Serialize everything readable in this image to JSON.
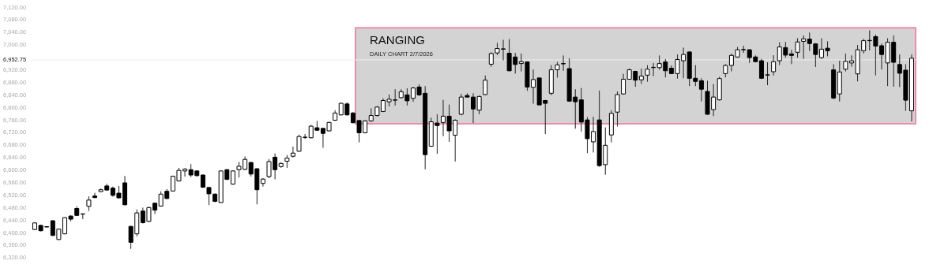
{
  "chart_data": {
    "type": "candlestick",
    "categories": [
      null,
      null,
      null,
      null,
      null,
      null,
      null,
      null,
      null,
      null,
      null,
      null,
      null,
      null,
      null,
      null,
      null,
      null,
      null,
      null,
      null,
      null,
      null,
      null,
      null,
      null,
      null,
      null,
      null,
      null,
      null,
      null,
      null,
      null,
      null,
      null,
      null,
      null,
      null,
      null,
      null,
      null,
      null,
      null,
      null,
      null,
      null,
      null,
      null,
      null,
      null,
      null,
      null,
      null,
      null,
      null,
      null,
      null,
      null,
      null,
      null,
      null,
      null,
      null,
      null,
      null,
      null,
      null,
      null,
      null,
      null,
      null,
      null,
      null,
      null,
      null,
      null,
      null,
      null,
      null,
      null,
      null,
      null,
      null,
      null,
      null,
      null,
      null,
      null,
      null,
      null,
      null,
      null,
      null,
      null,
      null,
      null,
      null,
      null,
      null,
      null,
      null,
      null,
      null,
      null,
      null,
      null,
      null,
      null,
      null,
      null,
      null,
      null,
      null,
      null,
      null,
      null,
      null,
      null,
      null,
      null,
      null,
      null,
      null,
      null,
      null,
      null,
      null,
      null,
      null,
      null,
      null,
      null,
      null,
      null,
      null,
      null,
      null,
      null,
      null,
      null,
      null,
      null,
      null,
      null,
      null,
      null
    ],
    "ohlc": [
      [
        6411,
        6434,
        6409,
        6432
      ],
      [
        6424,
        6426,
        6405,
        6407
      ],
      [
        6420,
        6421,
        6418,
        6419
      ],
      [
        6439,
        6440,
        6390,
        6392
      ],
      [
        6379,
        6414,
        6377,
        6412
      ],
      [
        6397,
        6450,
        6396,
        6449
      ],
      [
        6454,
        6456,
        6437,
        6444
      ],
      [
        6478,
        6485,
        6454,
        6456
      ],
      [
        6461,
        6462,
        6444,
        6460
      ],
      [
        6485,
        6517,
        6470,
        6505
      ],
      [
        6518,
        6528,
        6511,
        6513
      ],
      [
        6532,
        6542,
        6530,
        6538
      ],
      [
        6550,
        6557,
        6535,
        6537
      ],
      [
        6543,
        6548,
        6516,
        6520
      ],
      [
        6527,
        6550,
        6510,
        6512
      ],
      [
        6560,
        6582,
        6488,
        6490
      ],
      [
        6421,
        6422,
        6349,
        6370
      ],
      [
        6397,
        6475,
        6389,
        6464
      ],
      [
        6470,
        6481,
        6430,
        6433
      ],
      [
        6437,
        6484,
        6435,
        6481
      ],
      [
        6495,
        6497,
        6461,
        6473
      ],
      [
        6486,
        6533,
        6484,
        6524
      ],
      [
        6533,
        6540,
        6508,
        6510
      ],
      [
        6534,
        6583,
        6532,
        6581
      ],
      [
        6566,
        6608,
        6564,
        6600
      ],
      [
        6598,
        6607,
        6580,
        6604
      ],
      [
        6602,
        6620,
        6578,
        6585
      ],
      [
        6598,
        6600,
        6580,
        6583
      ],
      [
        6585,
        6587,
        6544,
        6546
      ],
      [
        6545,
        6547,
        6489,
        6525
      ],
      [
        6524,
        6526,
        6498,
        6501
      ],
      [
        6497,
        6600,
        6496,
        6598
      ],
      [
        6602,
        6604,
        6569,
        6571
      ],
      [
        6556,
        6600,
        6554,
        6598
      ],
      [
        6602,
        6627,
        6577,
        6613
      ],
      [
        6603,
        6644,
        6601,
        6635
      ],
      [
        6625,
        6627,
        6580,
        6588
      ],
      [
        6605,
        6607,
        6491,
        6538
      ],
      [
        6558,
        6575,
        6548,
        6572
      ],
      [
        6580,
        6636,
        6575,
        6628
      ],
      [
        6642,
        6654,
        6571,
        6602
      ],
      [
        6612,
        6625,
        6608,
        6622
      ],
      [
        6629,
        6649,
        6608,
        6639
      ],
      [
        6645,
        6676,
        6641,
        6655
      ],
      [
        6661,
        6714,
        6659,
        6708
      ],
      [
        6705,
        6716,
        6700,
        6706
      ],
      [
        6704,
        6745,
        6702,
        6741
      ],
      [
        6736,
        6758,
        6726,
        6728
      ],
      [
        6734,
        6735,
        6672,
        6718
      ],
      [
        6726,
        6755,
        6724,
        6753
      ],
      [
        6760,
        6792,
        6758,
        6783
      ],
      [
        6777,
        6816,
        6775,
        6814
      ],
      [
        6812,
        6817,
        6775,
        6777
      ],
      [
        6783,
        6786,
        6750,
        6752
      ],
      [
        6759,
        6761,
        6689,
        6720
      ],
      [
        6720,
        6760,
        6718,
        6758
      ],
      [
        6758,
        6798,
        6755,
        6775
      ],
      [
        6775,
        6805,
        6772,
        6802
      ],
      [
        6788,
        6830,
        6786,
        6823
      ],
      [
        6819,
        6842,
        6804,
        6827
      ],
      [
        6824,
        6859,
        6807,
        6825
      ],
      [
        6832,
        6859,
        6830,
        6851
      ],
      [
        6841,
        6862,
        6807,
        6822
      ],
      [
        6830,
        6866,
        6819,
        6863
      ],
      [
        6866,
        6874,
        6838,
        6841
      ],
      [
        6846,
        6869,
        6603,
        6650
      ],
      [
        6677,
        6768,
        6675,
        6755
      ],
      [
        6751,
        6779,
        6653,
        6743
      ],
      [
        6753,
        6825,
        6709,
        6773
      ],
      [
        6773,
        6810,
        6691,
        6726
      ],
      [
        6712,
        6763,
        6628,
        6760
      ],
      [
        6779,
        6844,
        6776,
        6834
      ],
      [
        6839,
        6846,
        6832,
        6834
      ],
      [
        6834,
        6846,
        6751,
        6796
      ],
      [
        6792,
        6838,
        6779,
        6836
      ],
      [
        6842,
        6903,
        6840,
        6888
      ],
      [
        6939,
        6977,
        6931,
        6973
      ],
      [
        6975,
        7007,
        6968,
        6989
      ],
      [
        6988,
        7017,
        6951,
        6987
      ],
      [
        6974,
        7019,
        6916,
        6918
      ],
      [
        6962,
        6975,
        6909,
        6938
      ],
      [
        6941,
        6973,
        6916,
        6947
      ],
      [
        6946,
        6948,
        6854,
        6866
      ],
      [
        6865,
        6922,
        6813,
        6890
      ],
      [
        6895,
        6896,
        6807,
        6809
      ],
      [
        6823,
        6825,
        6716,
        6814
      ],
      [
        6846,
        6936,
        6840,
        6921
      ],
      [
        6921,
        6946,
        6896,
        6937
      ],
      [
        6941,
        6967,
        6918,
        6940
      ],
      [
        6925,
        6958,
        6819,
        6821
      ],
      [
        6834,
        6859,
        6733,
        6819
      ],
      [
        6825,
        6863,
        6724,
        6754
      ],
      [
        6761,
        6770,
        6655,
        6701
      ],
      [
        6691,
        6771,
        6657,
        6724
      ],
      [
        6761,
        6855,
        6611,
        6615
      ],
      [
        6618,
        6737,
        6586,
        6680
      ],
      [
        6713,
        6792,
        6689,
        6782
      ],
      [
        6786,
        6852,
        6740,
        6842
      ],
      [
        6844,
        6908,
        6842,
        6891
      ],
      [
        6891,
        6925,
        6889,
        6921
      ],
      [
        6916,
        6918,
        6867,
        6888
      ],
      [
        6889,
        6925,
        6876,
        6901
      ],
      [
        6904,
        6936,
        6883,
        6923
      ],
      [
        6928,
        6943,
        6901,
        6929
      ],
      [
        6928,
        6967,
        6921,
        6941
      ],
      [
        6946,
        6955,
        6897,
        6918
      ],
      [
        6926,
        6935,
        6907,
        6909
      ],
      [
        6909,
        6970,
        6893,
        6954
      ],
      [
        6950,
        6992,
        6894,
        6970
      ],
      [
        6978,
        6980,
        6869,
        6894
      ],
      [
        6894,
        6936,
        6869,
        6884
      ],
      [
        6886,
        6894,
        6820,
        6859
      ],
      [
        6852,
        6886,
        6777,
        6779
      ],
      [
        6794,
        6876,
        6773,
        6834
      ],
      [
        6825,
        6899,
        6823,
        6893
      ],
      [
        6909,
        6939,
        6897,
        6935
      ],
      [
        6935,
        6973,
        6916,
        6967
      ],
      [
        6962,
        6994,
        6960,
        6985
      ],
      [
        6985,
        6998,
        6975,
        6986
      ],
      [
        6985,
        6987,
        6943,
        6960
      ],
      [
        6962,
        6967,
        6945,
        6947
      ],
      [
        6950,
        6956,
        6892,
        6894
      ],
      [
        6904,
        6945,
        6872,
        6905
      ],
      [
        6915,
        6968,
        6903,
        6947
      ],
      [
        6950,
        7009,
        6936,
        6994
      ],
      [
        6992,
        7010,
        6960,
        6968
      ],
      [
        6972,
        6985,
        6939,
        6967
      ],
      [
        6977,
        7022,
        6960,
        7010
      ],
      [
        7012,
        7031,
        6956,
        7020
      ],
      [
        7019,
        7040,
        6981,
        7005
      ],
      [
        7004,
        7006,
        6930,
        6970
      ],
      [
        6960,
        7022,
        6956,
        6987
      ],
      [
        6990,
        7012,
        6964,
        6982
      ],
      [
        6921,
        6939,
        6827,
        6831
      ],
      [
        6844,
        6950,
        6820,
        6914
      ],
      [
        6923,
        6973,
        6916,
        6948
      ],
      [
        6943,
        6967,
        6931,
        6950
      ],
      [
        6908,
        7000,
        6884,
        6985
      ],
      [
        6982,
        7020,
        6973,
        7014
      ],
      [
        7014,
        7047,
        6983,
        7015
      ],
      [
        7027,
        7034,
        6903,
        6997
      ],
      [
        6998,
        7005,
        6922,
        6970
      ],
      [
        6943,
        7022,
        6869,
        7009
      ],
      [
        7009,
        7031,
        6867,
        6945
      ],
      [
        6938,
        6970,
        6866,
        6910
      ],
      [
        6920,
        6939,
        6790,
        6824
      ],
      [
        6790,
        6970,
        6756,
        6958
      ]
    ],
    "ylim": [
      6288,
      7144
    ],
    "yticks": [
      {
        "value": 6320,
        "label": "6,320.00"
      },
      {
        "value": 6360,
        "label": "6,360.00"
      },
      {
        "value": 6400,
        "label": "6,400.00"
      },
      {
        "value": 6440,
        "label": "6,440.00"
      },
      {
        "value": 6480,
        "label": "6,480.00"
      },
      {
        "value": 6520,
        "label": "6,520.00"
      },
      {
        "value": 6560,
        "label": "6,560.00"
      },
      {
        "value": 6600,
        "label": "6,600.00"
      },
      {
        "value": 6640,
        "label": "6,640.00"
      },
      {
        "value": 6680,
        "label": "6,680.00"
      },
      {
        "value": 6720,
        "label": "6,720.00"
      },
      {
        "value": 6760,
        "label": "6,760.00"
      },
      {
        "value": 6800,
        "label": "6,800.00"
      },
      {
        "value": 6840,
        "label": "6,840.00"
      },
      {
        "value": 6880,
        "label": "6,880.00"
      },
      {
        "value": 6920,
        "label": "6,920.00"
      },
      {
        "value": 7000,
        "label": "7,000.00"
      },
      {
        "value": 7040,
        "label": "7,040.00"
      },
      {
        "value": 7080,
        "label": "7,080.00"
      },
      {
        "value": 7120,
        "label": "7,120.00"
      }
    ],
    "bands": [
      {
        "axis": "y",
        "from": 6749,
        "to": 7055,
        "label": "RANGING",
        "color": "#d3d3d3"
      }
    ],
    "ref_lines": [
      {
        "axis": "y",
        "value": 6952.75,
        "label": "6,952.75",
        "color": "#ececec"
      }
    ],
    "annotations": [
      "DAILY CHART  2/7/2026"
    ]
  }
}
